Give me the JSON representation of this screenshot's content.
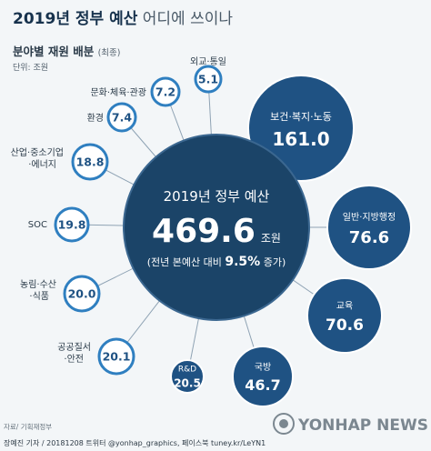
{
  "header": {
    "title_bold": "2019년 정부 예산",
    "title_light": " 어디에 쓰이나",
    "subtitle": "분야별 재원 배분",
    "subtitle_note": "(최종)",
    "unit": "단위: 조원"
  },
  "center": {
    "title": "2019년 정부 예산",
    "value": "469.6",
    "unit": "조원",
    "note_prefix": "(전년 본예산 대비 ",
    "note_value": "9.5%",
    "note_suffix": " 증가)"
  },
  "chart_data": {
    "type": "bubble",
    "title": "2019년 정부 예산 어디에 쓰이나",
    "total": 469.6,
    "unit": "조원",
    "growth_vs_prior_year_pct": 9.5,
    "categories": [
      "보건·복지·노동",
      "일반·지방행정",
      "교육",
      "국방",
      "R&D",
      "공공질서·안전",
      "농림·수산·식품",
      "SOC",
      "산업·중소기업·에너지",
      "환경",
      "문화·체육·관광",
      "외교·통일"
    ],
    "values": [
      161.0,
      76.6,
      70.6,
      46.7,
      20.5,
      20.1,
      20.0,
      19.8,
      18.8,
      7.4,
      7.2,
      5.1
    ]
  },
  "footer": {
    "source": "자료/ 기획재정부",
    "credit": "장예진 기자 / 20181208 트위터 @yonhap_graphics, 페이스북 tuney.kr/LeYN1",
    "logo_text": "YONHAP NEWS"
  },
  "colors": {
    "center_fill": "#1b4468",
    "large_bubble_fill": "#1f5283",
    "small_bubble_border": "#2f7fc0",
    "small_bubble_text": "#1f5283",
    "spoke": "#8fa3b4",
    "background": "#f3f6f8"
  }
}
